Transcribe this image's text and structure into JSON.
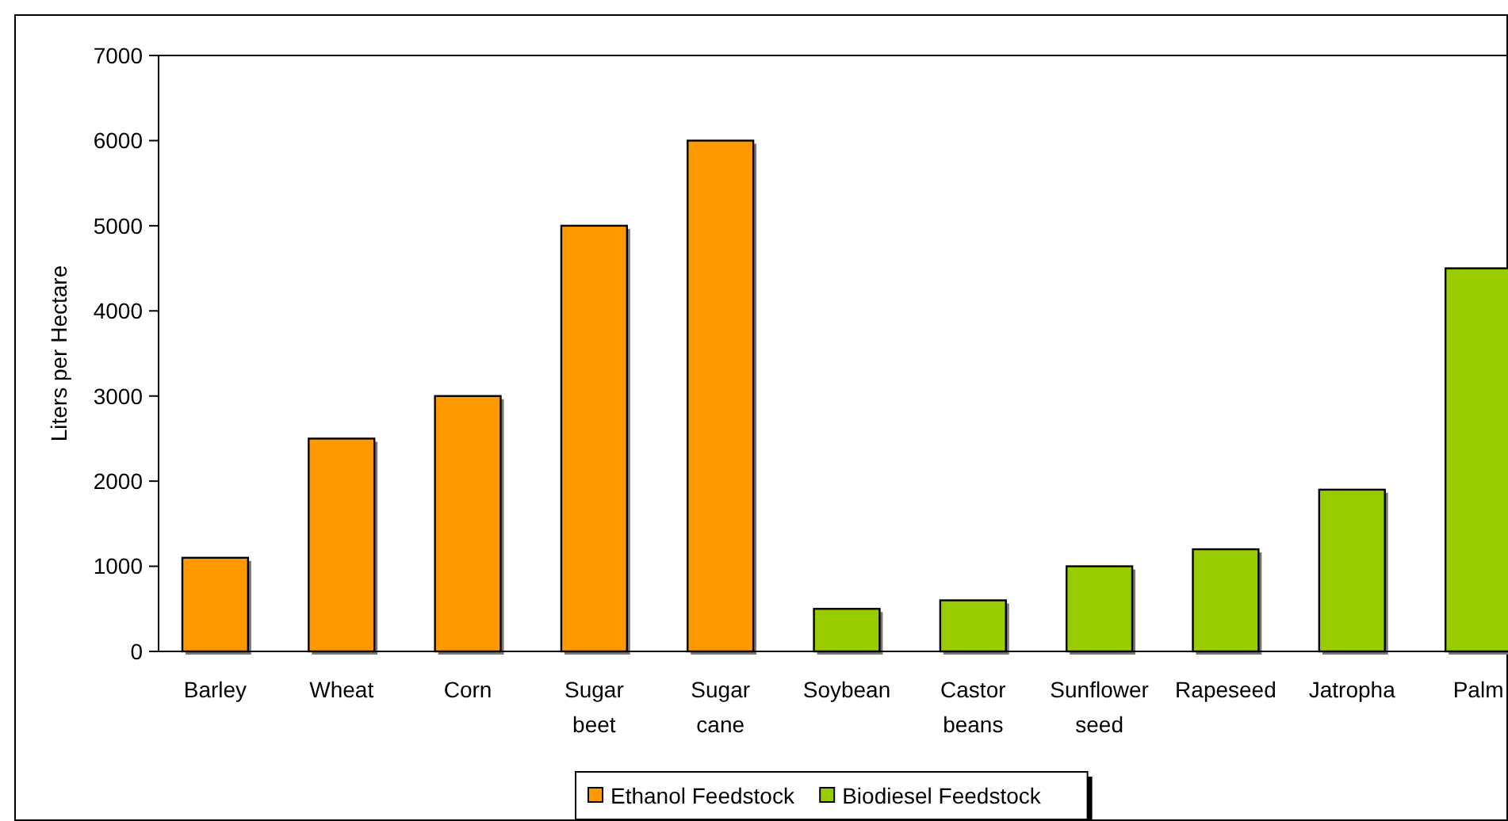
{
  "chart_data": {
    "type": "bar",
    "ylabel": "Liters per Hectare",
    "categories": [
      "Barley",
      "Wheat",
      "Corn",
      "Sugar beet",
      "Sugar cane",
      "Soybean",
      "Castor beans",
      "Sunflower seed",
      "Rapeseed",
      "Jatropha",
      "Palm"
    ],
    "series": [
      {
        "name": "Ethanol Feedstock",
        "color": "#ff9900",
        "values": [
          1100,
          2500,
          3000,
          5000,
          6000,
          null,
          null,
          null,
          null,
          null,
          null
        ]
      },
      {
        "name": "Biodiesel Feedstock",
        "color": "#99cc00",
        "values": [
          null,
          null,
          null,
          null,
          null,
          500,
          600,
          1000,
          1200,
          1900,
          4500
        ]
      }
    ],
    "ylim": [
      0,
      7000
    ],
    "yticks": [
      0,
      1000,
      2000,
      3000,
      4000,
      5000,
      6000,
      7000
    ],
    "legend": "bottom",
    "grid": false
  }
}
